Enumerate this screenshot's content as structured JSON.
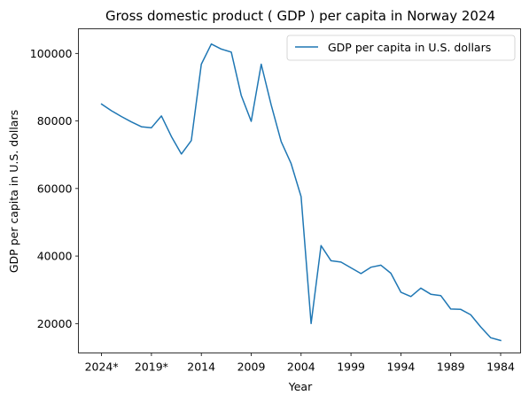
{
  "chart_data": {
    "type": "line",
    "title": "Gross domestic product ( GDP ) per capita in Norway 2024",
    "xlabel": "Year",
    "ylabel": "GDP per capita in U.S. dollars",
    "x": [
      "2024*",
      "2023*",
      "2022*",
      "2021*",
      "2020*",
      "2019*",
      "2018",
      "2017",
      "2016",
      "2015",
      "2014",
      "2013",
      "2012",
      "2011",
      "2010",
      "2009",
      "2008",
      "2007",
      "2006",
      "2005",
      "2004",
      "2003",
      "2002",
      "2001",
      "2000",
      "1999",
      "1998",
      "1997",
      "1996",
      "1995",
      "1994",
      "1993",
      "1992",
      "1991",
      "1990",
      "1989",
      "1988",
      "1987",
      "1986",
      "1985",
      "1984"
    ],
    "x_ticks": [
      "2024*",
      "2019*",
      "2014",
      "2009",
      "2004",
      "1999",
      "1994",
      "1989",
      "1984"
    ],
    "y_ticks": [
      20000,
      40000,
      60000,
      80000,
      100000
    ],
    "ylim": [
      11300,
      107300
    ],
    "grid": false,
    "legend_position": "upper right",
    "series": [
      {
        "name": "GDP per capita in U.S. dollars",
        "color": "#1f77b4",
        "values": [
          85000,
          83000,
          81300,
          79700,
          78300,
          78000,
          81500,
          75400,
          70200,
          74200,
          96800,
          102800,
          101300,
          100400,
          87600,
          79900,
          96800,
          84800,
          73900,
          67400,
          57600,
          20000,
          43100,
          38600,
          38200,
          36500,
          34800,
          36700,
          37300,
          34900,
          29300,
          28000,
          30500,
          28700,
          28300,
          24300,
          24200,
          22600,
          19000,
          15800,
          15000
        ]
      }
    ]
  }
}
